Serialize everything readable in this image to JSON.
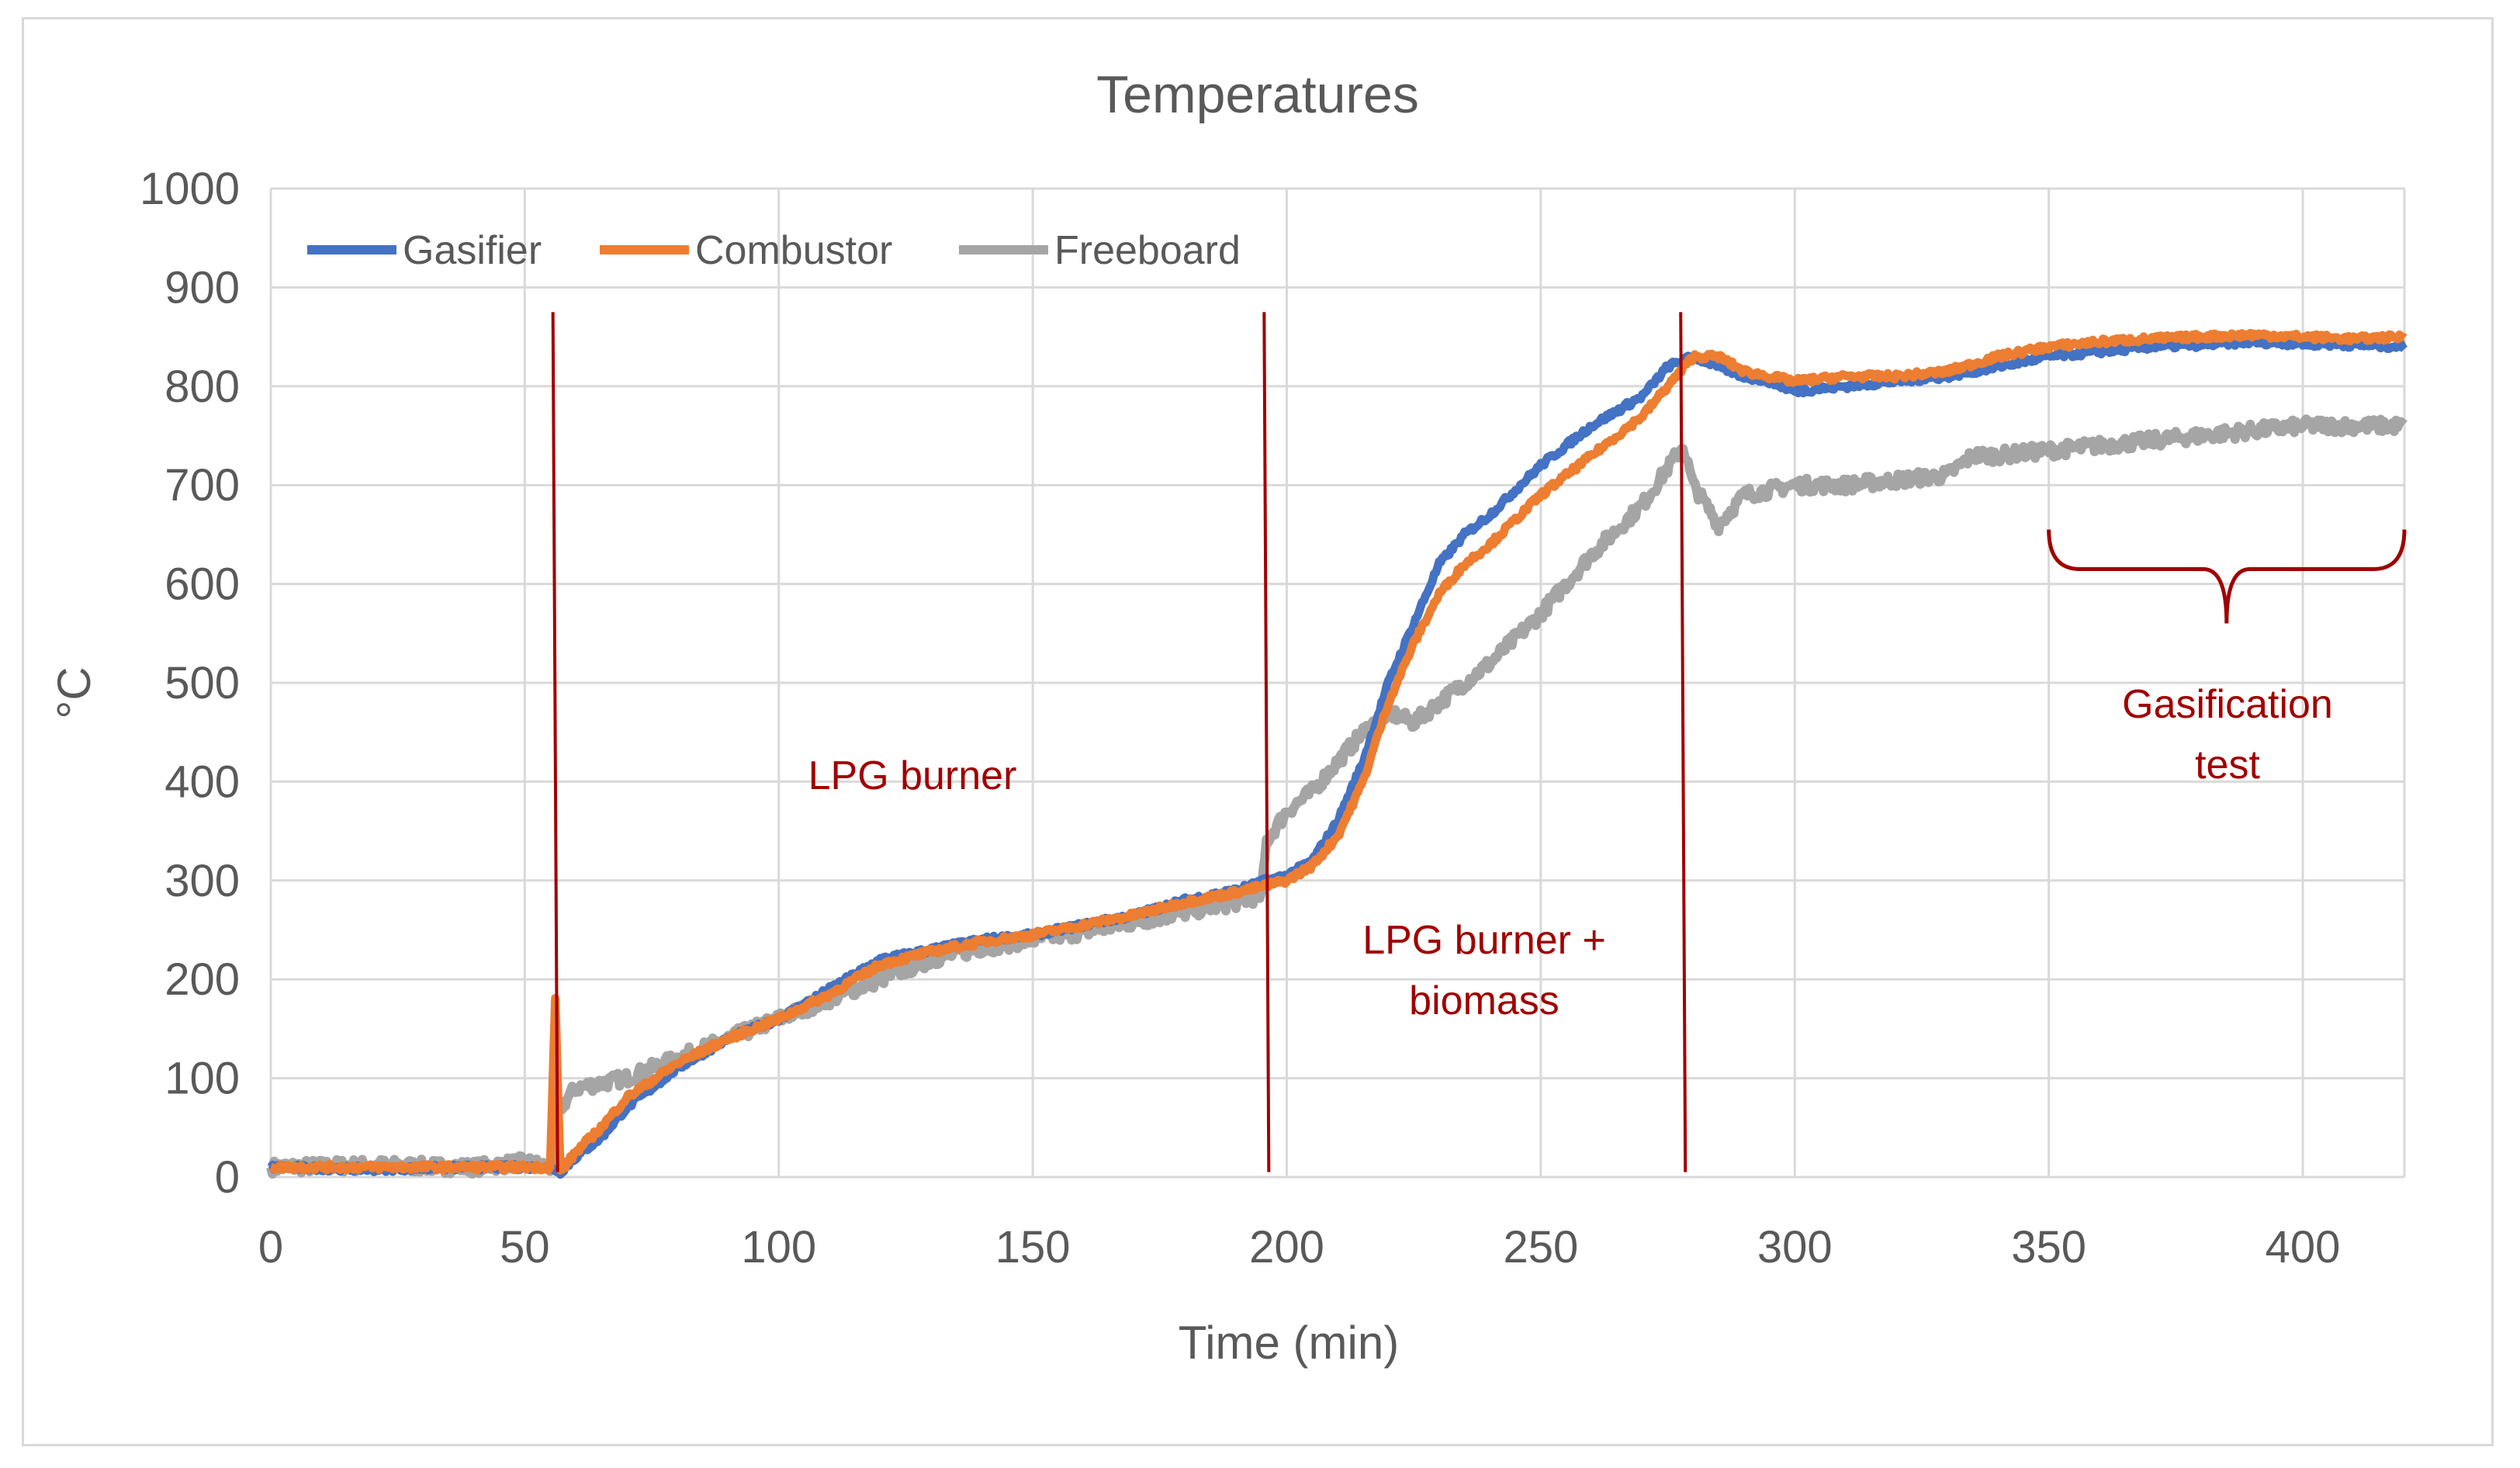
{
  "chart_data": {
    "type": "line",
    "title": "Temperatures",
    "xlabel": "Time (min)",
    "ylabel": "°C",
    "xlim": [
      0,
      420
    ],
    "ylim": [
      0,
      1000
    ],
    "xticks": [
      0,
      50,
      100,
      150,
      200,
      250,
      300,
      350,
      400
    ],
    "yticks": [
      0,
      100,
      200,
      300,
      400,
      500,
      600,
      700,
      800,
      900,
      1000
    ],
    "grid": true,
    "legend_position": "top-left",
    "series": [
      {
        "name": "Gasifier",
        "color": "#4472c4",
        "x": [
          0,
          20,
          40,
          55,
          57,
          60,
          65,
          70,
          80,
          90,
          100,
          110,
          120,
          130,
          140,
          150,
          160,
          170,
          180,
          190,
          196,
          200,
          205,
          210,
          215,
          220,
          225,
          230,
          235,
          240,
          250,
          260,
          270,
          275,
          280,
          285,
          290,
          295,
          300,
          310,
          320,
          330,
          340,
          350,
          360,
          370,
          380,
          390,
          400,
          410,
          420
        ],
        "values": [
          10,
          8,
          10,
          10,
          5,
          20,
          40,
          70,
          110,
          140,
          160,
          190,
          220,
          230,
          240,
          245,
          255,
          265,
          280,
          290,
          300,
          305,
          320,
          360,
          420,
          500,
          560,
          620,
          650,
          670,
          720,
          760,
          790,
          820,
          830,
          820,
          810,
          805,
          795,
          800,
          805,
          810,
          820,
          830,
          835,
          840,
          842,
          845,
          843,
          842,
          840
        ]
      },
      {
        "name": "Combustor",
        "color": "#ed7d31",
        "x": [
          0,
          20,
          40,
          55,
          56,
          57,
          60,
          65,
          70,
          80,
          90,
          100,
          110,
          120,
          130,
          140,
          150,
          160,
          170,
          180,
          190,
          196,
          200,
          205,
          210,
          215,
          220,
          225,
          230,
          235,
          240,
          250,
          260,
          270,
          275,
          280,
          285,
          290,
          295,
          300,
          310,
          320,
          330,
          340,
          350,
          360,
          370,
          380,
          390,
          400,
          410,
          420
        ],
        "values": [
          10,
          10,
          10,
          10,
          180,
          5,
          25,
          50,
          80,
          115,
          140,
          160,
          185,
          215,
          228,
          238,
          245,
          255,
          265,
          278,
          288,
          295,
          300,
          315,
          345,
          400,
          480,
          540,
          590,
          620,
          640,
          690,
          730,
          770,
          800,
          830,
          830,
          815,
          810,
          805,
          810,
          810,
          815,
          830,
          840,
          845,
          848,
          850,
          852,
          850,
          848,
          850
        ]
      },
      {
        "name": "Freeboard",
        "color": "#a5a5a5",
        "x": [
          0,
          20,
          40,
          50,
          55,
          57,
          60,
          70,
          80,
          90,
          100,
          110,
          120,
          130,
          140,
          150,
          160,
          170,
          180,
          190,
          195,
          196,
          200,
          205,
          210,
          215,
          220,
          225,
          230,
          235,
          240,
          250,
          260,
          270,
          278,
          280,
          285,
          290,
          295,
          300,
          310,
          320,
          330,
          335,
          340,
          350,
          360,
          370,
          380,
          390,
          400,
          410,
          420
        ],
        "values": [
          10,
          12,
          10,
          15,
          10,
          70,
          90,
          100,
          120,
          140,
          160,
          180,
          200,
          220,
          232,
          240,
          248,
          258,
          268,
          278,
          285,
          340,
          370,
          390,
          420,
          450,
          470,
          460,
          480,
          500,
          520,
          570,
          630,
          680,
          740,
          700,
          660,
          690,
          695,
          700,
          700,
          705,
          710,
          730,
          730,
          735,
          740,
          745,
          750,
          755,
          760,
          760,
          760
        ]
      }
    ],
    "annotations": {
      "phase1": "LPG burner",
      "phase2_line1": "LPG burner +",
      "phase2_line2": "biomass",
      "phase3_line1": "Gasification",
      "phase3_line2": "test"
    },
    "phase_lines_x": [
      56,
      196,
      278
    ],
    "bracket_x_range": [
      350,
      420
    ]
  }
}
